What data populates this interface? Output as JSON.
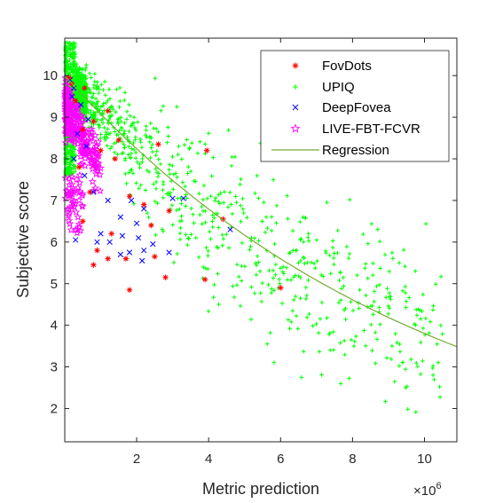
{
  "chart_data": {
    "type": "scatter",
    "xlabel": "Metric prediction",
    "ylabel": "Subjective score",
    "x_multiplier_label": "×10",
    "x_multiplier_exponent": "6",
    "x_scale_factor": 1000000,
    "xlim": [
      0,
      10.9
    ],
    "ylim": [
      1.2,
      10.9
    ],
    "x_ticks": [
      2,
      4,
      6,
      8,
      10
    ],
    "y_ticks": [
      2,
      3,
      4,
      5,
      6,
      7,
      8,
      9,
      10
    ],
    "grid": false,
    "legend_position": "top-right",
    "series": [
      {
        "name": "FovDots",
        "marker": "asterisk",
        "color": "#ff0000",
        "points": [
          [
            0.12,
            9.95
          ],
          [
            0.2,
            9.8
          ],
          [
            0.55,
            9.7
          ],
          [
            0.3,
            9.4
          ],
          [
            1.2,
            9.15
          ],
          [
            0.8,
            8.9
          ],
          [
            0.5,
            8.7
          ],
          [
            1.5,
            8.45
          ],
          [
            1.0,
            8.2
          ],
          [
            1.4,
            8.0
          ],
          [
            2.6,
            8.35
          ],
          [
            3.95,
            8.2
          ],
          [
            0.4,
            7.8
          ],
          [
            0.7,
            7.2
          ],
          [
            1.8,
            7.1
          ],
          [
            2.2,
            6.9
          ],
          [
            2.9,
            6.75
          ],
          [
            4.4,
            6.55
          ],
          [
            0.5,
            6.5
          ],
          [
            2.4,
            6.4
          ],
          [
            1.3,
            6.2
          ],
          [
            0.9,
            5.8
          ],
          [
            0.8,
            5.45
          ],
          [
            1.2,
            5.6
          ],
          [
            1.7,
            5.6
          ],
          [
            2.5,
            5.65
          ],
          [
            1.8,
            4.85
          ],
          [
            2.8,
            5.15
          ],
          [
            3.9,
            5.1
          ],
          [
            6.0,
            4.9
          ]
        ]
      },
      {
        "name": "UPIQ",
        "marker": "plus",
        "color": "#00ff00",
        "points": []
      },
      {
        "name": "DeepFovea",
        "marker": "cross",
        "color": "#0000ff",
        "points": [
          [
            0.15,
            9.9
          ],
          [
            0.25,
            9.7
          ],
          [
            0.2,
            9.5
          ],
          [
            0.45,
            9.3
          ],
          [
            0.65,
            8.95
          ],
          [
            0.35,
            8.6
          ],
          [
            0.6,
            8.3
          ],
          [
            0.25,
            8.0
          ],
          [
            0.55,
            7.6
          ],
          [
            0.8,
            7.2
          ],
          [
            1.2,
            7.0
          ],
          [
            1.85,
            7.0
          ],
          [
            2.2,
            6.8
          ],
          [
            1.55,
            6.6
          ],
          [
            2.0,
            6.45
          ],
          [
            3.0,
            7.05
          ],
          [
            3.3,
            7.05
          ],
          [
            1.0,
            6.2
          ],
          [
            1.6,
            6.15
          ],
          [
            1.25,
            6.0
          ],
          [
            2.05,
            6.1
          ],
          [
            2.45,
            5.95
          ],
          [
            1.55,
            5.7
          ],
          [
            1.8,
            5.75
          ],
          [
            2.2,
            5.8
          ],
          [
            2.9,
            5.75
          ],
          [
            0.3,
            6.05
          ],
          [
            2.15,
            5.55
          ],
          [
            4.6,
            6.3
          ],
          [
            0.9,
            6.0
          ]
        ]
      },
      {
        "name": "LIVE-FBT-FCVR",
        "marker": "pentagram",
        "color": "#ff00ff",
        "points": []
      },
      {
        "name": "Regression",
        "marker": "line",
        "color": "#77ac30",
        "curve": {
          "x0": 0.05,
          "x1": 10.9,
          "a": 10.0,
          "b": -0.0967,
          "steps": 80
        }
      }
    ]
  }
}
